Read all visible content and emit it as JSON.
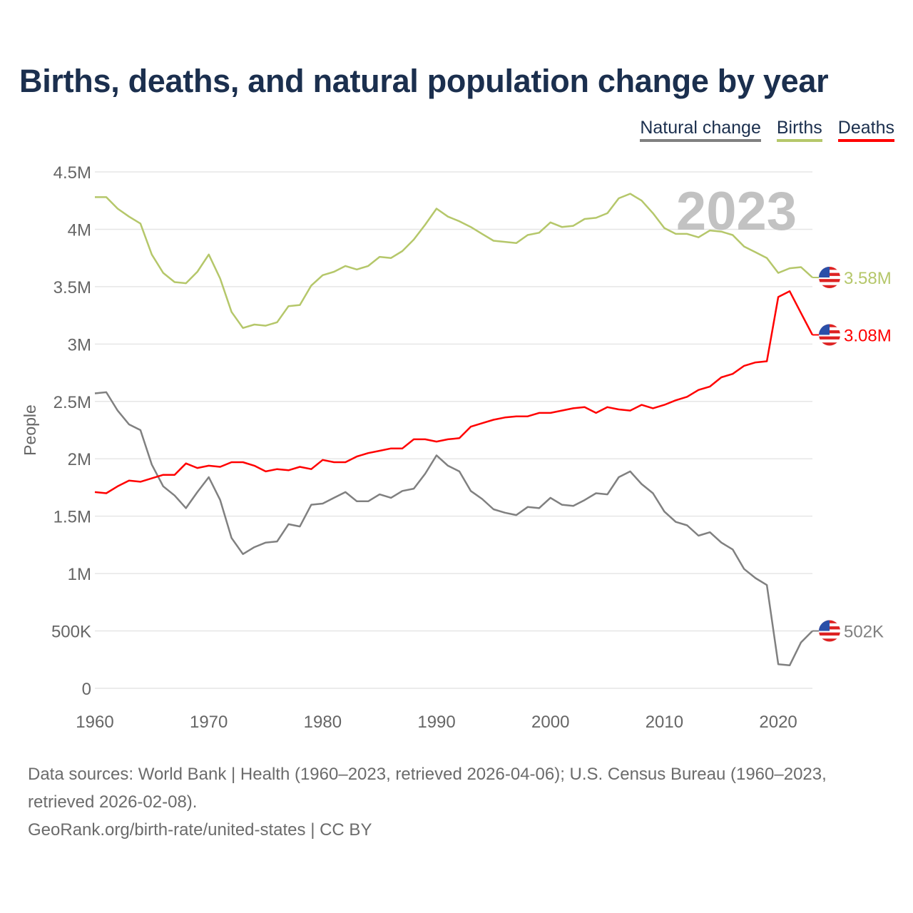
{
  "title": "Births, deaths, and natural population change by year",
  "legend": [
    {
      "label": "Natural change",
      "color": "#808080"
    },
    {
      "label": "Births",
      "color": "#b5c76a"
    },
    {
      "label": "Deaths",
      "color": "#ff0000"
    }
  ],
  "year_watermark": "2023",
  "footer": {
    "sources": "Data sources: World Bank | Health (1960–2023, retrieved 2026-04-06); U.S. Census Bureau (1960–2023, retrieved 2026-02-08).",
    "credit": "GeoRank.org/birth-rate/united-states | CC BY"
  },
  "chart_data": {
    "type": "line",
    "title": "Births, deaths, and natural population change by year",
    "xlabel": "",
    "ylabel": "People",
    "xlim": [
      1960,
      2023
    ],
    "ylim": [
      0,
      4500000
    ],
    "x_ticks": [
      1960,
      1970,
      1980,
      1990,
      2000,
      2010,
      2020
    ],
    "x_tick_labels": [
      "1960",
      "1970",
      "1980",
      "1990",
      "2000",
      "2010",
      "2020"
    ],
    "y_ticks": [
      0,
      500000,
      1000000,
      1500000,
      2000000,
      2500000,
      3000000,
      3500000,
      4000000,
      4500000
    ],
    "y_tick_labels": [
      "0",
      "500K",
      "1M",
      "1.5M",
      "2M",
      "2.5M",
      "3M",
      "3.5M",
      "4M",
      "4.5M"
    ],
    "grid": true,
    "legend_position": "top-right",
    "x_start": 1960,
    "units": "millions",
    "series": [
      {
        "name": "Natural change",
        "color": "#808080",
        "end_label": "502K",
        "values": [
          2.57,
          2.58,
          2.42,
          2.3,
          2.25,
          1.95,
          1.76,
          1.68,
          1.57,
          1.71,
          1.84,
          1.64,
          1.31,
          1.17,
          1.23,
          1.27,
          1.28,
          1.43,
          1.41,
          1.6,
          1.61,
          1.66,
          1.71,
          1.63,
          1.63,
          1.69,
          1.66,
          1.72,
          1.74,
          1.87,
          2.03,
          1.94,
          1.89,
          1.72,
          1.65,
          1.56,
          1.53,
          1.51,
          1.58,
          1.57,
          1.66,
          1.6,
          1.59,
          1.64,
          1.7,
          1.69,
          1.84,
          1.89,
          1.78,
          1.7,
          1.54,
          1.45,
          1.42,
          1.33,
          1.36,
          1.27,
          1.21,
          1.04,
          0.96,
          0.9,
          0.21,
          0.2,
          0.4,
          0.5
        ]
      },
      {
        "name": "Births",
        "color": "#b5c76a",
        "end_label": "3.58M",
        "values": [
          4.28,
          4.28,
          4.18,
          4.11,
          4.05,
          3.78,
          3.62,
          3.54,
          3.53,
          3.63,
          3.78,
          3.57,
          3.28,
          3.14,
          3.17,
          3.16,
          3.19,
          3.33,
          3.34,
          3.51,
          3.6,
          3.63,
          3.68,
          3.65,
          3.68,
          3.76,
          3.75,
          3.81,
          3.91,
          4.04,
          4.18,
          4.11,
          4.07,
          4.02,
          3.96,
          3.9,
          3.89,
          3.88,
          3.95,
          3.97,
          4.06,
          4.02,
          4.03,
          4.09,
          4.1,
          4.14,
          4.27,
          4.31,
          4.25,
          4.14,
          4.01,
          3.96,
          3.96,
          3.93,
          3.99,
          3.98,
          3.95,
          3.85,
          3.8,
          3.75,
          3.62,
          3.66,
          3.67,
          3.58
        ]
      },
      {
        "name": "Deaths",
        "color": "#ff0000",
        "end_label": "3.08M",
        "values": [
          1.71,
          1.7,
          1.76,
          1.81,
          1.8,
          1.83,
          1.86,
          1.86,
          1.96,
          1.92,
          1.94,
          1.93,
          1.97,
          1.97,
          1.94,
          1.89,
          1.91,
          1.9,
          1.93,
          1.91,
          1.99,
          1.97,
          1.97,
          2.02,
          2.05,
          2.07,
          2.09,
          2.09,
          2.17,
          2.17,
          2.15,
          2.17,
          2.18,
          2.28,
          2.31,
          2.34,
          2.36,
          2.37,
          2.37,
          2.4,
          2.4,
          2.42,
          2.44,
          2.45,
          2.4,
          2.45,
          2.43,
          2.42,
          2.47,
          2.44,
          2.47,
          2.51,
          2.54,
          2.6,
          2.63,
          2.71,
          2.74,
          2.81,
          2.84,
          2.85,
          3.41,
          3.46,
          3.27,
          3.08
        ]
      }
    ]
  }
}
